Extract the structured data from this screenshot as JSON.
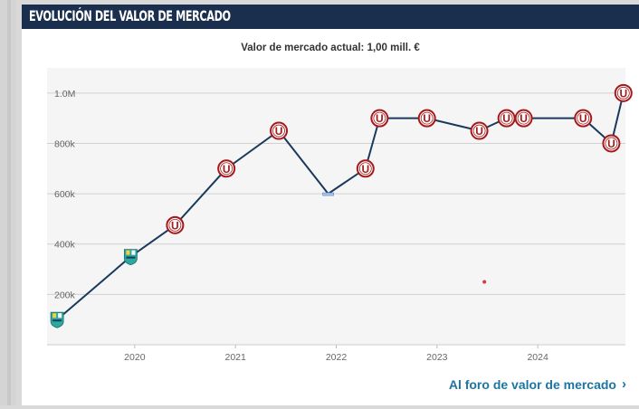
{
  "header": {
    "title": "Evolución del valor de mercado"
  },
  "subtitle": "Valor de mercado actual: 1,00 mill. €",
  "footer": {
    "link_label": "Al foro de valor de mercado",
    "link_icon": "chevron-right-icon"
  },
  "colors": {
    "header_bg": "#1a2f4e",
    "line": "#1a3a5c",
    "club_marker_red": "#a5191b",
    "link": "#1d75a3",
    "plot_bg": "#f5f5f5"
  },
  "chart_data": {
    "type": "line",
    "title": "Valor de mercado actual: 1,00 mill. €",
    "xlabel": "",
    "ylabel": "",
    "ylim": [
      0,
      1100000
    ],
    "xlim": [
      2019.13,
      2024.87
    ],
    "grid": true,
    "y_ticks": [
      {
        "value": 200000,
        "label": "200k"
      },
      {
        "value": 400000,
        "label": "400k"
      },
      {
        "value": 600000,
        "label": "600k"
      },
      {
        "value": 800000,
        "label": "800k"
      },
      {
        "value": 1000000,
        "label": "1.0M"
      }
    ],
    "x_ticks": [
      {
        "value": 2020,
        "label": "2020"
      },
      {
        "value": 2021,
        "label": "2021"
      },
      {
        "value": 2022,
        "label": "2022"
      },
      {
        "value": 2023,
        "label": "2023"
      },
      {
        "value": 2024,
        "label": "2024"
      }
    ],
    "series": [
      {
        "name": "Valor de mercado",
        "points": [
          {
            "x": 2019.23,
            "y": 100000,
            "club": "other-club-a"
          },
          {
            "x": 2019.96,
            "y": 350000,
            "club": "other-club-a"
          },
          {
            "x": 2020.4,
            "y": 475000,
            "club": "universitario"
          },
          {
            "x": 2020.91,
            "y": 700000,
            "club": "universitario"
          },
          {
            "x": 2021.43,
            "y": 850000,
            "club": "universitario"
          },
          {
            "x": 2021.92,
            "y": 600000,
            "club": "other-club-b"
          },
          {
            "x": 2022.29,
            "y": 700000,
            "club": "universitario"
          },
          {
            "x": 2022.43,
            "y": 900000,
            "club": "universitario"
          },
          {
            "x": 2022.9,
            "y": 900000,
            "club": "universitario"
          },
          {
            "x": 2023.42,
            "y": 850000,
            "club": "universitario"
          },
          {
            "x": 2023.69,
            "y": 900000,
            "club": "universitario"
          },
          {
            "x": 2023.86,
            "y": 900000,
            "club": "universitario"
          },
          {
            "x": 2024.45,
            "y": 900000,
            "club": "universitario"
          },
          {
            "x": 2024.73,
            "y": 800000,
            "club": "universitario"
          },
          {
            "x": 2024.85,
            "y": 1000000,
            "club": "universitario"
          }
        ]
      }
    ],
    "annotations": [
      {
        "type": "dot",
        "x": 2023.47,
        "y": 250000,
        "color": "#d9363e"
      }
    ],
    "club_marker_letter": "U"
  }
}
